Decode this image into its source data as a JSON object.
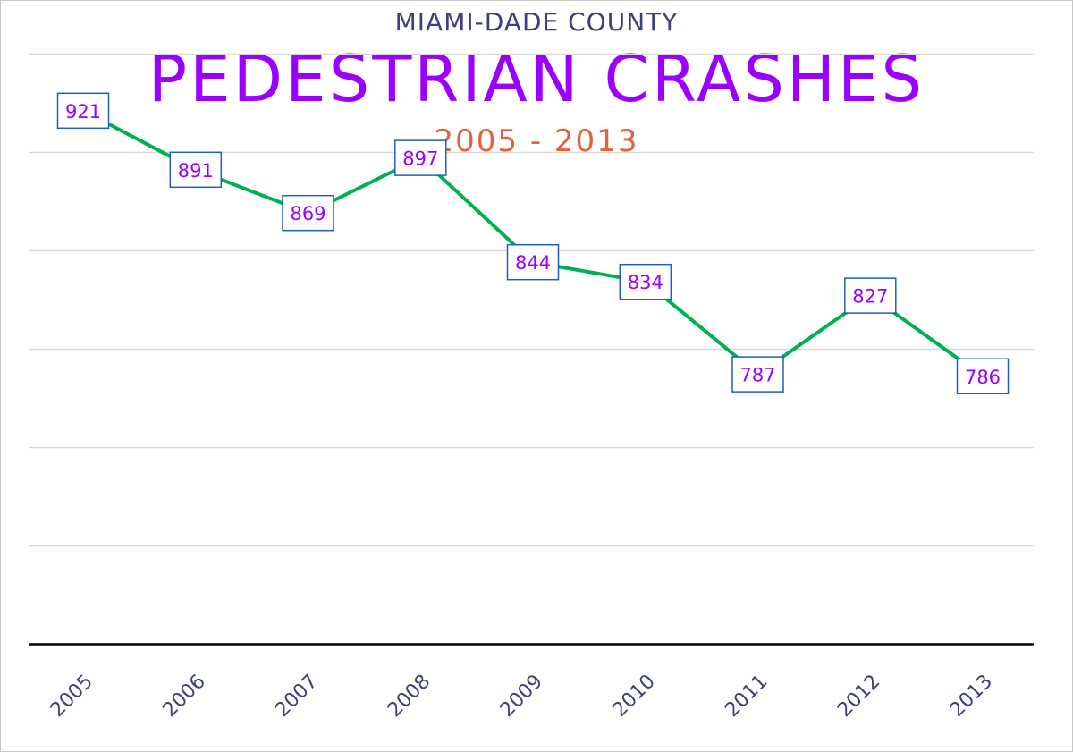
{
  "header": {
    "county": "MIAMI-DADE COUNTY",
    "title": "PEDESTRIAN CRASHES",
    "years": "2005 - 2013"
  },
  "colors": {
    "line": "#00b050",
    "label_text": "#9b00ff",
    "label_border": "#1f5fbf",
    "grid": "#d9d9d9",
    "axis": "#000000"
  },
  "chart_data": {
    "type": "line",
    "title": "PEDESTRIAN CRASHES",
    "subtitle": "MIAMI-DADE COUNTY",
    "period": "2005 - 2013",
    "categories": [
      "2005",
      "2006",
      "2007",
      "2008",
      "2009",
      "2010",
      "2011",
      "2012",
      "2013"
    ],
    "series": [
      {
        "name": "Pedestrian Crashes",
        "values": [
          921,
          891,
          869,
          897,
          844,
          834,
          787,
          827,
          786
        ]
      }
    ],
    "xlabel": "",
    "ylabel": "",
    "ylim": [
      650,
      1000
    ],
    "y_gridlines": [
      700,
      750,
      800,
      850,
      900,
      950
    ],
    "grid": true,
    "legend": "none",
    "data_labels": true
  }
}
